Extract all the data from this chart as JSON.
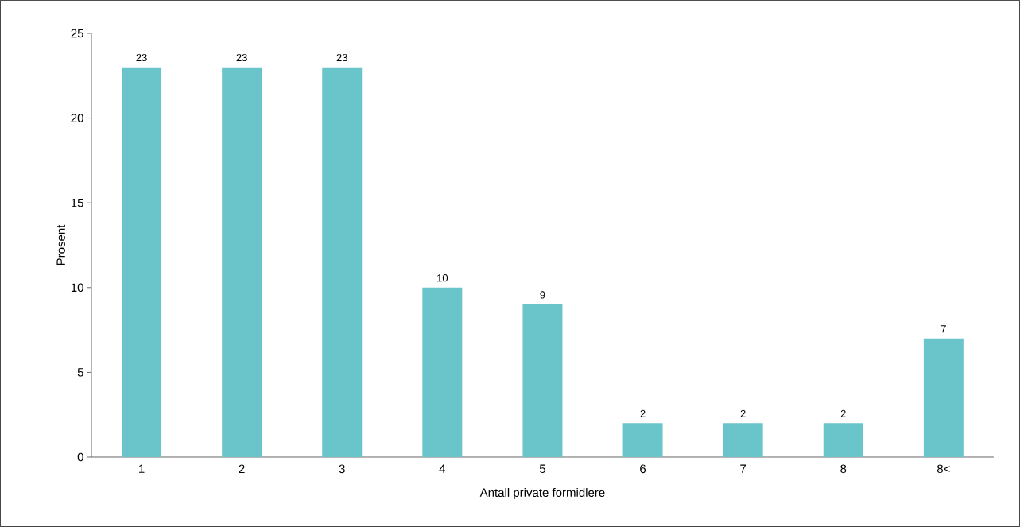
{
  "chart_data": {
    "type": "bar",
    "xlabel": "Antall private formidlere",
    "ylabel": "Prosent",
    "categories": [
      "1",
      "2",
      "3",
      "4",
      "5",
      "6",
      "7",
      "8",
      "8<"
    ],
    "values": [
      23,
      23,
      23,
      10,
      9,
      2,
      2,
      2,
      7
    ],
    "color": "#6ac5cb",
    "ylim": [
      0,
      25
    ],
    "yticks": [
      0,
      5,
      10,
      15,
      20,
      25
    ],
    "data_labels": true,
    "grid": false
  }
}
